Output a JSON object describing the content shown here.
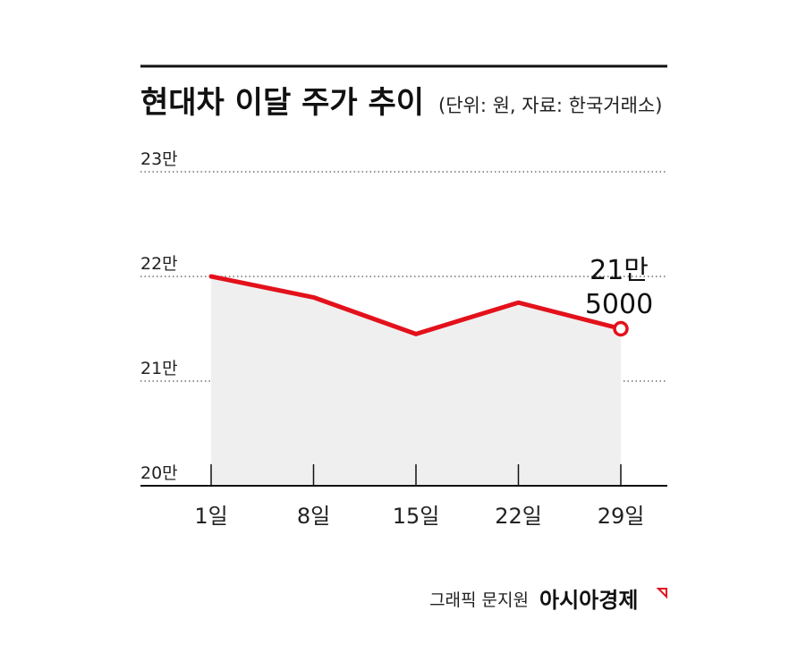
{
  "chart_data": {
    "type": "line",
    "title": "현대차 이달 주가 추이",
    "subtitle": "(단위: 원, 자료: 한국거래소)",
    "categories": [
      "1일",
      "8일",
      "15일",
      "22일",
      "29일"
    ],
    "values": [
      220000,
      218000,
      214500,
      217500,
      215000
    ],
    "ylim": [
      200000,
      230000
    ],
    "y_ticks": [
      {
        "value": 230000,
        "label": "23만"
      },
      {
        "value": 220000,
        "label": "22만"
      },
      {
        "value": 210000,
        "label": "21만"
      },
      {
        "value": 200000,
        "label": "20만"
      }
    ],
    "end_label": [
      "21만",
      "5000"
    ],
    "grid": true,
    "colors": {
      "line": "#e3111b",
      "fill": "#efefef",
      "grid": "#555555"
    }
  },
  "footer": {
    "credit": "그래픽 문지원",
    "brand": "아시아경제"
  }
}
